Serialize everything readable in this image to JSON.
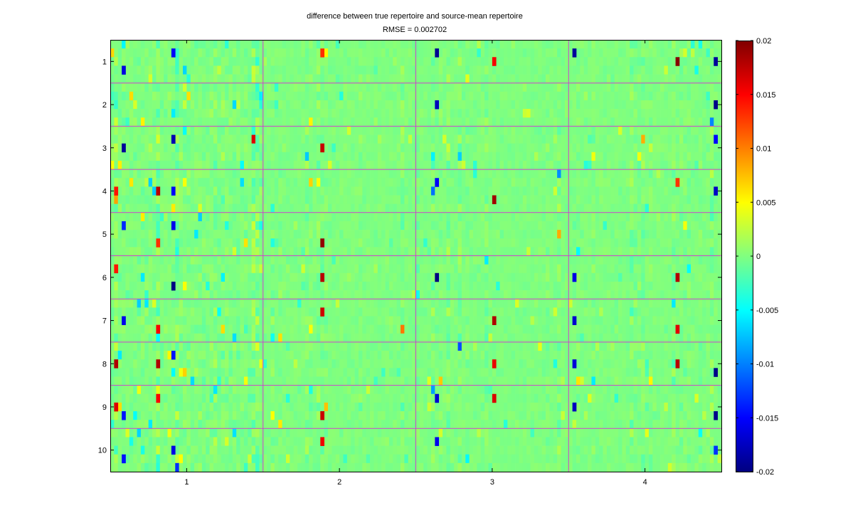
{
  "chart_data": {
    "type": "heatmap",
    "title": "difference between true repertoire and source-mean repertoire",
    "subtitle": "RMSE = 0.002702",
    "xlabel": "",
    "ylabel": "",
    "x_tick_labels": [
      "1",
      "2",
      "3",
      "4"
    ],
    "y_tick_labels": [
      "1",
      "2",
      "3",
      "4",
      "5",
      "6",
      "7",
      "8",
      "9",
      "10"
    ],
    "xlim": [
      0.5,
      4.5
    ],
    "ylim": [
      0.5,
      10.5
    ],
    "grid": "magenta block separators between cells (x = 1.5, 2.5, 3.5; y = 1.5 … 9.5)",
    "colorbar": {
      "range": [
        -0.02,
        0.02
      ],
      "tick_values": [
        0.02,
        0.015,
        0.01,
        0.005,
        0,
        -0.005,
        -0.01,
        -0.015,
        -0.02
      ],
      "tick_labels": [
        "0.02",
        "0.015",
        "0.01",
        "0.005",
        "0",
        "-0.005",
        "-0.01",
        "-0.015",
        "-0.02"
      ],
      "colormap": "jet",
      "placement": "right"
    },
    "structure": {
      "columns_per_block": 40,
      "rows_per_block": 5,
      "x_blocks": 4,
      "y_blocks": 10
    },
    "value_summary": "most cells near 0 (green); sparse extremes up to about +0.02 (dark red) and -0.02 (dark blue), denser in x-block 1",
    "colors": {
      "grid_lines": "#cc44cc",
      "neutral": "#80ff80"
    }
  }
}
